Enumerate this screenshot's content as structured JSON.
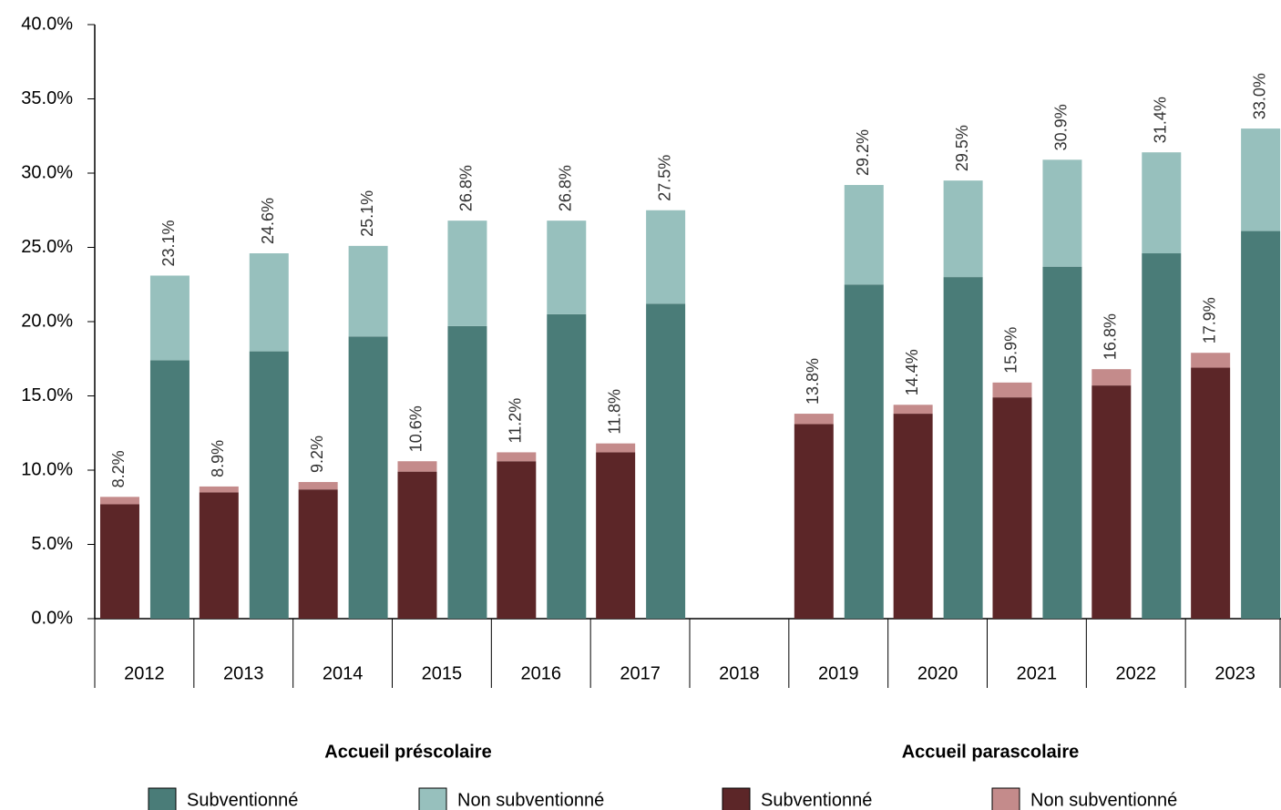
{
  "chart_data": {
    "type": "grouped-stacked-bar",
    "categories": [
      "2012",
      "2013",
      "2014",
      "2015",
      "2016",
      "2017",
      "2018",
      "2019",
      "2020",
      "2021",
      "2022",
      "2023"
    ],
    "ylim": [
      0,
      40
    ],
    "yticks": [
      {
        "value": 0,
        "label": "0.0%"
      },
      {
        "value": 5,
        "label": "5.0%"
      },
      {
        "value": 10,
        "label": "10.0%"
      },
      {
        "value": 15,
        "label": "15.0%"
      },
      {
        "value": 20,
        "label": "20.0%"
      },
      {
        "value": 25,
        "label": "25.0%"
      },
      {
        "value": 30,
        "label": "30.0%"
      },
      {
        "value": 35,
        "label": "35.0%"
      },
      {
        "value": 40,
        "label": "40.0%"
      }
    ],
    "groups": [
      {
        "name": "Accueil parascolaire",
        "series": [
          {
            "name": "Subventionné",
            "color": "#5c2628",
            "values": [
              7.7,
              8.5,
              8.7,
              9.9,
              10.6,
              11.2,
              null,
              13.1,
              13.8,
              14.9,
              15.7,
              16.9
            ]
          },
          {
            "name": "Non subventionné",
            "color": "#c48b8b",
            "values": [
              0.5,
              0.4,
              0.5,
              0.7,
              0.6,
              0.6,
              null,
              0.7,
              0.6,
              1.0,
              1.1,
              1.0
            ]
          }
        ],
        "totals": [
          8.2,
          8.9,
          9.2,
          10.6,
          11.2,
          11.8,
          null,
          13.8,
          14.4,
          15.9,
          16.8,
          17.9
        ],
        "total_labels": [
          "8.2%",
          "8.9%",
          "9.2%",
          "10.6%",
          "11.2%",
          "11.8%",
          null,
          "13.8%",
          "14.4%",
          "15.9%",
          "16.8%",
          "17.9%"
        ]
      },
      {
        "name": "Accueil préscolaire",
        "series": [
          {
            "name": "Subventionné",
            "color": "#4a7c78",
            "values": [
              17.4,
              18.0,
              19.0,
              19.7,
              20.5,
              21.2,
              null,
              22.5,
              23.0,
              23.7,
              24.6,
              26.1
            ]
          },
          {
            "name": "Non subventionné",
            "color": "#97c0bd",
            "values": [
              5.7,
              6.6,
              6.1,
              7.1,
              6.3,
              6.3,
              null,
              6.7,
              6.5,
              7.2,
              6.8,
              6.9
            ]
          }
        ],
        "totals": [
          23.1,
          24.6,
          25.1,
          26.8,
          26.8,
          27.5,
          null,
          29.2,
          29.5,
          30.9,
          31.4,
          33.0
        ],
        "total_labels": [
          "23.1%",
          "24.6%",
          "25.1%",
          "26.8%",
          "26.8%",
          "27.5%",
          null,
          "29.2%",
          "29.5%",
          "30.9%",
          "31.4%",
          "33.0%"
        ]
      }
    ]
  }
}
